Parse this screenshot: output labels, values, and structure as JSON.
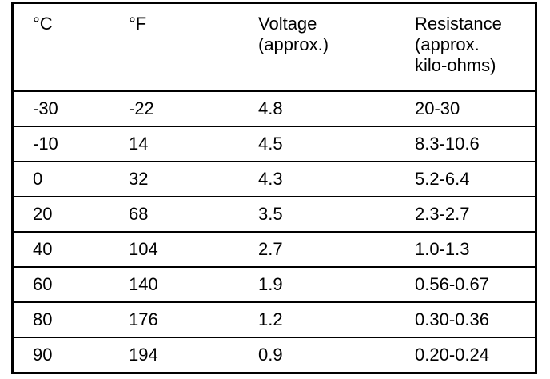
{
  "table": {
    "header": [
      [
        "°C"
      ],
      [
        "°F"
      ],
      [
        "Voltage",
        "(approx.)"
      ],
      [
        "Resistance",
        "(approx.",
        "kilo-ohms)"
      ]
    ],
    "rows": [
      [
        "-30",
        "-22",
        "4.8",
        "20-30"
      ],
      [
        "-10",
        "14",
        "4.5",
        "8.3-10.6"
      ],
      [
        "0",
        "32",
        "4.3",
        "5.2-6.4"
      ],
      [
        "20",
        "68",
        "3.5",
        "2.3-2.7"
      ],
      [
        "40",
        "104",
        "2.7",
        "1.0-1.3"
      ],
      [
        "60",
        "140",
        "1.9",
        "0.56-0.67"
      ],
      [
        "80",
        "176",
        "1.2",
        "0.30-0.36"
      ],
      [
        "90",
        "194",
        "0.9",
        "0.20-0.24"
      ]
    ]
  }
}
